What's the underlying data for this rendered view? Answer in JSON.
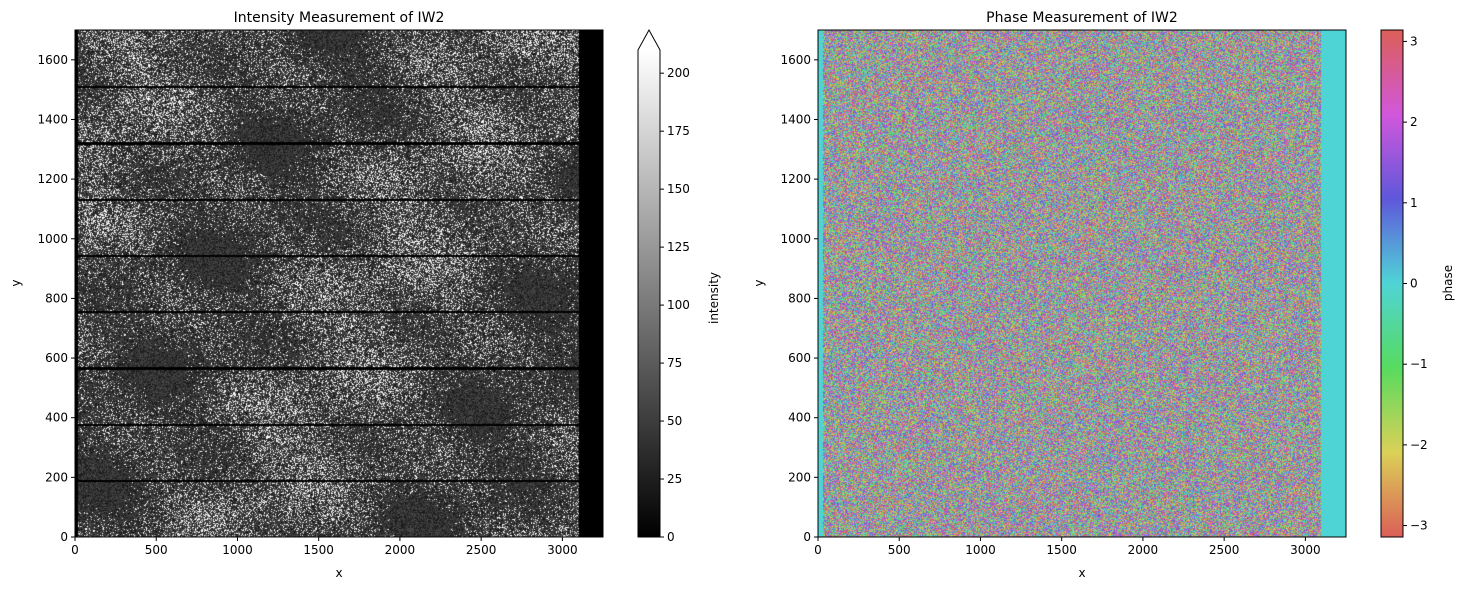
{
  "chart_data": [
    {
      "type": "heatmap",
      "title": "Intensity Measurement of IW2",
      "xlabel": "x",
      "ylabel": "y",
      "xlim": [
        0,
        3250
      ],
      "ylim": [
        0,
        1700
      ],
      "xticks": [
        0,
        500,
        1000,
        1500,
        2000,
        2500,
        3000
      ],
      "yticks": [
        0,
        200,
        400,
        600,
        800,
        1000,
        1200,
        1400,
        1600
      ],
      "data_x_extent": [
        0,
        3100
      ],
      "burst_seams_y": [
        190,
        378,
        567,
        755,
        944,
        1132,
        1321,
        1510
      ],
      "colormap": "gray",
      "colorbar": {
        "label": "intensity",
        "range": [
          0,
          210
        ],
        "ticks": [
          0,
          25,
          50,
          75,
          100,
          125,
          150,
          175,
          200
        ],
        "extend": "max"
      },
      "grid": false
    },
    {
      "type": "heatmap",
      "title": "Phase Measurement of IW2",
      "xlabel": "x",
      "ylabel": "y",
      "xlim": [
        0,
        3250
      ],
      "ylim": [
        0,
        1700
      ],
      "xticks": [
        0,
        500,
        1000,
        1500,
        2000,
        2500,
        3000
      ],
      "yticks": [
        0,
        200,
        400,
        600,
        800,
        1000,
        1200,
        1400,
        1600
      ],
      "data_x_extent": [
        25,
        3095
      ],
      "colormap": "hls (cyclic)",
      "fill_value_color": "#4fd4d6",
      "colorbar": {
        "label": "phase",
        "range": [
          -3.14159,
          3.14159
        ],
        "ticks": [
          -3,
          -2,
          -1,
          0,
          1,
          2,
          3
        ],
        "tick_labels": [
          "−3",
          "−2",
          "−1",
          "0",
          "1",
          "2",
          "3"
        ]
      },
      "grid": false
    }
  ]
}
